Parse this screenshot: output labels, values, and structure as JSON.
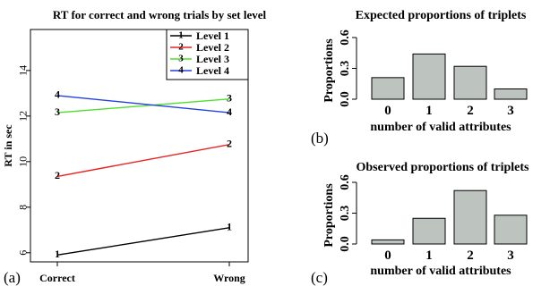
{
  "panels": {
    "a": {
      "letter": "(a)"
    },
    "b": {
      "letter": "(b)"
    },
    "c": {
      "letter": "(c)"
    }
  },
  "chart_data": [
    {
      "type": "line",
      "title": "RT for correct and wrong trials by set level",
      "xlabel": "",
      "ylabel": "RT in sec",
      "categories": [
        "Correct",
        "Wrong"
      ],
      "ylim": [
        5.6,
        15.8
      ],
      "yticks": [
        "6",
        "8",
        "10",
        "12",
        "14"
      ],
      "legend_position": "top-right",
      "colors": {
        "Level 1": "#000000",
        "Level 2": "#e8211f",
        "Level 3": "#4fe02a",
        "Level 4": "#2340e0"
      },
      "series": [
        {
          "name": "Level 1",
          "marker": "1",
          "values": [
            5.9,
            7.1
          ]
        },
        {
          "name": "Level 2",
          "marker": "2",
          "values": [
            9.35,
            10.75
          ]
        },
        {
          "name": "Level 3",
          "marker": "3",
          "values": [
            12.15,
            12.75
          ]
        },
        {
          "name": "Level 4",
          "marker": "4",
          "values": [
            12.9,
            12.15
          ]
        }
      ]
    },
    {
      "type": "bar",
      "title": "Expected proportions of triplets",
      "xlabel": "number of valid attributes",
      "ylabel": "Proportions",
      "categories": [
        "0",
        "1",
        "2",
        "3"
      ],
      "values": [
        0.21,
        0.44,
        0.32,
        0.1
      ],
      "ylim": [
        0,
        0.6
      ],
      "yticks": [
        "0.0",
        "0.3",
        "0.6"
      ],
      "bar_color": "#bdc4c0"
    },
    {
      "type": "bar",
      "title": "Observed proportions of triplets",
      "xlabel": "number of valid attributes",
      "ylabel": "Proportions",
      "categories": [
        "0",
        "1",
        "2",
        "3"
      ],
      "values": [
        0.04,
        0.25,
        0.52,
        0.28
      ],
      "ylim": [
        0,
        0.6
      ],
      "yticks": [
        "0.0",
        "0.3",
        "0.6"
      ],
      "bar_color": "#bdc4c0"
    }
  ]
}
